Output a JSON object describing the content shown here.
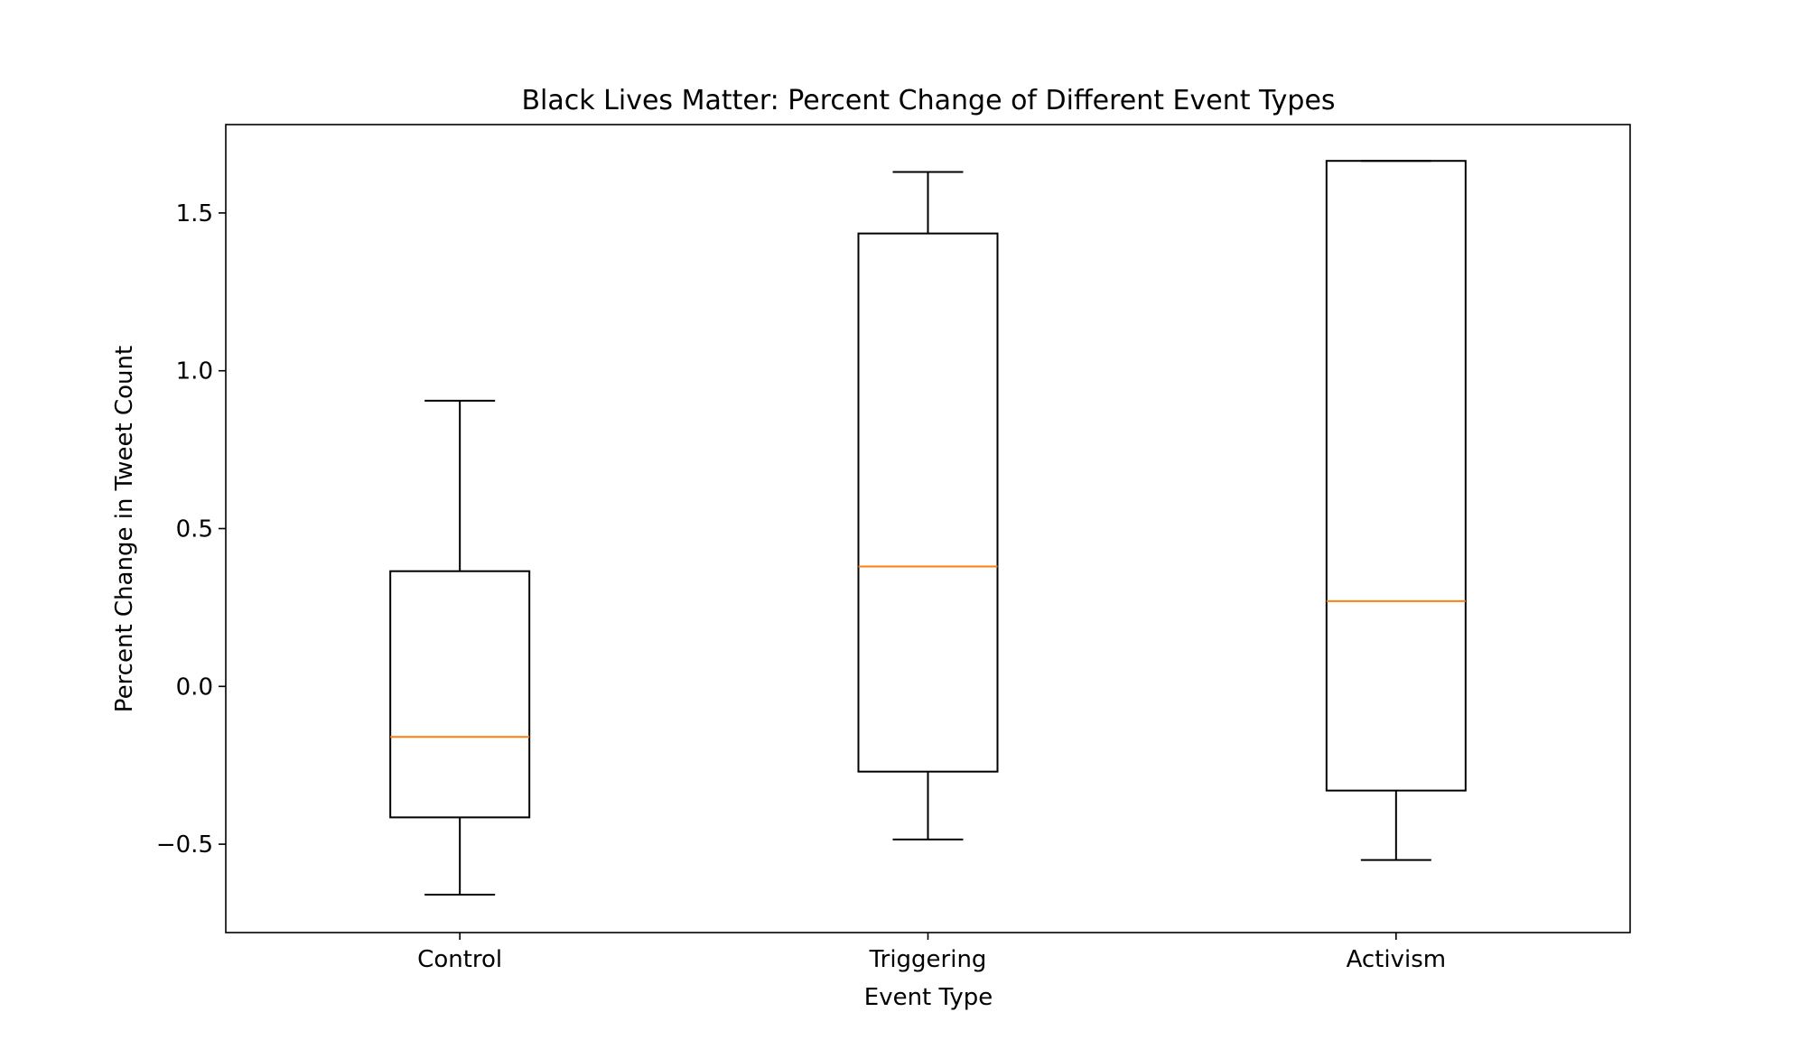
{
  "chart_data": {
    "type": "box",
    "title": "Black Lives Matter: Percent Change of Different Event Types",
    "xlabel": "Event Type",
    "ylabel": "Percent Change in Tweet Count",
    "ylim": [
      -0.78,
      1.78
    ],
    "yticks": [
      -0.5,
      0.0,
      0.5,
      1.0,
      1.5
    ],
    "ytick_labels": [
      "−0.5",
      "0.0",
      "0.5",
      "1.0",
      "1.5"
    ],
    "categories": [
      "Control",
      "Triggering",
      "Activism"
    ],
    "boxes": [
      {
        "whisker_low": -0.66,
        "q1": -0.415,
        "median": -0.16,
        "q3": 0.365,
        "whisker_high": 0.905
      },
      {
        "whisker_low": -0.485,
        "q1": -0.27,
        "median": 0.38,
        "q3": 1.435,
        "whisker_high": 1.63
      },
      {
        "whisker_low": -0.55,
        "q1": -0.33,
        "median": 0.27,
        "q3": 1.665,
        "whisker_high": 1.665
      }
    ],
    "grid": false,
    "legend": "none",
    "colors": {
      "box": "#000000",
      "median": "#ff7f0e"
    }
  }
}
